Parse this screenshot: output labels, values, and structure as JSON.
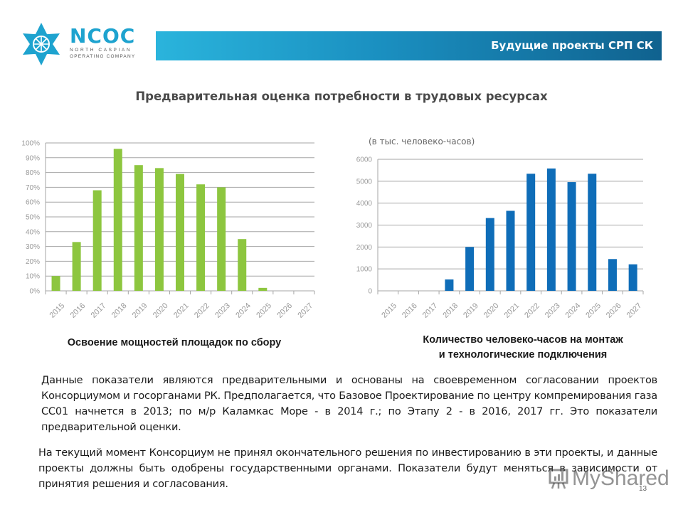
{
  "logo": {
    "name": "NCOC",
    "line1": "NORTH CASPIAN",
    "line2": "OPERATING COMPANY",
    "color": "#1ea3cf"
  },
  "header": {
    "title": "Будущие проекты СРП СК"
  },
  "main_title": "Предварительная  оценка потребности в трудовых ресурсах",
  "right_chart_unit": "(в тыс. человеко-часов)",
  "captions": {
    "left": "Освоение мощностей площадок по сбору",
    "right_line1": "Количество человеко-часов на монтаж",
    "right_line2": "и технологические подключения"
  },
  "paragraphs": {
    "p1": "Данные показатели являются предварительными и основаны на  своевременном согласовании проектов Консорциумом и госорганами РК. Предполагается, что Базовое Проектирование по центру компремирования газа СС01 начнется в 2013; по м/р Каламкас Море -  в 2014 г.; по Этапу 2 - в 2016, 2017 гг. Это показатели предварительной оценки.",
    "p2": "На текущий момент Консорциум не принял окончательного решения по инвестированию в эти проекты, и данные проекты должны быть одобрены государственными органами. Показатели будут меняться в зависимости от принятия решения и согласования."
  },
  "watermark": "MyShared",
  "page_number": "13",
  "chart_data": [
    {
      "type": "bar",
      "title": "Освоение мощностей площадок по сбору",
      "xlabel": "",
      "ylabel": "",
      "categories": [
        "2015",
        "2016",
        "2017",
        "2018",
        "2019",
        "2020",
        "2021",
        "2022",
        "2023",
        "2024",
        "2025",
        "2026",
        "2027"
      ],
      "values": [
        10,
        33,
        68,
        96,
        85,
        83,
        79,
        72,
        70,
        35,
        2,
        0,
        0
      ],
      "unit": "%",
      "ylim": [
        0,
        100
      ],
      "yticks": [
        "0%",
        "10%",
        "20%",
        "30%",
        "40%",
        "50%",
        "60%",
        "70%",
        "80%",
        "90%",
        "100%"
      ],
      "grid": true,
      "legend": "none",
      "color": "#8dc63f"
    },
    {
      "type": "bar",
      "title": "Количество человеко-часов на монтаж и технологические подключения",
      "subtitle": "(в тыс. человеко-часов)",
      "xlabel": "",
      "ylabel": "",
      "categories": [
        "2015",
        "2016",
        "2017",
        "2018",
        "2019",
        "2020",
        "2021",
        "2022",
        "2023",
        "2024",
        "2025",
        "2026",
        "2027"
      ],
      "values": [
        0,
        0,
        0,
        520,
        2000,
        3320,
        3650,
        5340,
        5580,
        4960,
        5340,
        1450,
        1210
      ],
      "ylim": [
        0,
        6000
      ],
      "yticks": [
        "0",
        "1000",
        "2000",
        "3000",
        "4000",
        "5000",
        "6000"
      ],
      "grid": true,
      "legend": "none",
      "color": "#0f6db8"
    }
  ]
}
